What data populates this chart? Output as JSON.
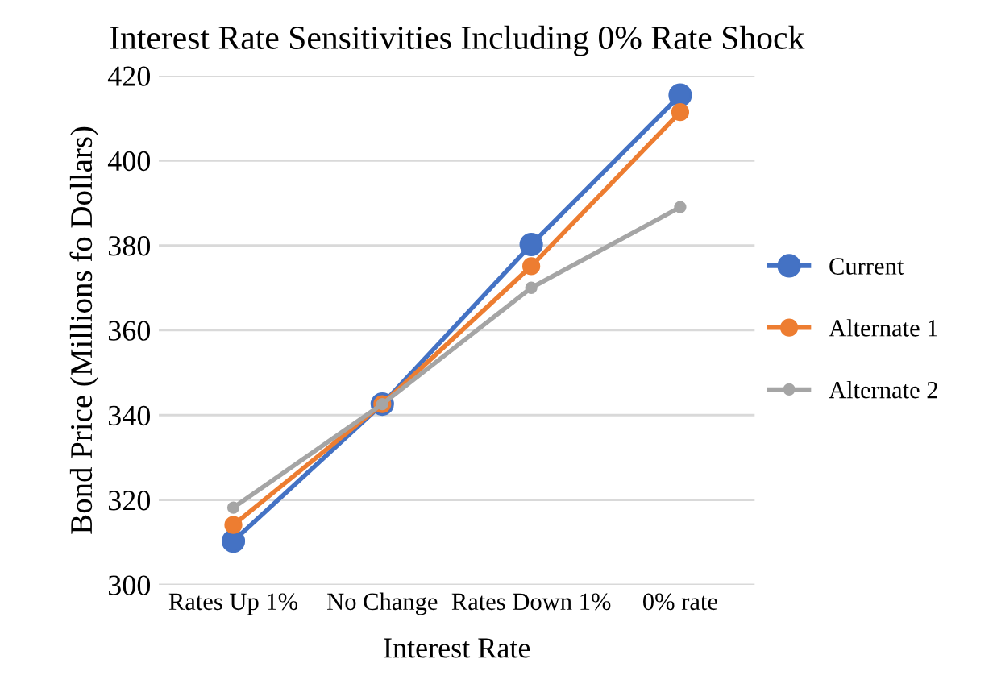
{
  "chart_data": {
    "type": "line",
    "title": "Interest Rate Sensitivities Including 0% Rate Shock",
    "xlabel": "Interest Rate",
    "ylabel": "Bond Price (Millions fo Dollars)",
    "categories": [
      "Rates Up 1%",
      "No Change",
      "Rates Down 1%",
      "0% rate"
    ],
    "series": [
      {
        "name": "Current",
        "color": "#4472c4",
        "values": [
          310.3,
          342.6,
          380.2,
          415.4
        ]
      },
      {
        "name": "Alternate 1",
        "color": "#ed7d31",
        "values": [
          314.1,
          342.6,
          375.1,
          411.4
        ]
      },
      {
        "name": "Alternate 2",
        "color": "#a5a5a5",
        "values": [
          318.2,
          342.6,
          370.0,
          389.0
        ]
      }
    ],
    "ylim": [
      300,
      420
    ],
    "yticks": [
      300,
      320,
      340,
      360,
      380,
      400,
      420
    ],
    "grid": "y",
    "legend": "right",
    "marker": "circle",
    "line_style": "solid"
  }
}
